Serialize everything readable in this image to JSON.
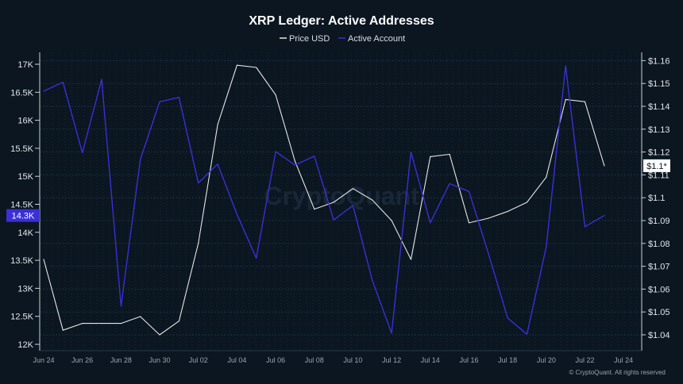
{
  "chart_data": {
    "type": "line",
    "title": "XRP Ledger: Active Addresses",
    "x": [
      "Jun 24",
      "Jun 25",
      "Jun 26",
      "Jun 27",
      "Jun 28",
      "Jun 29",
      "Jun 30",
      "Jul 01",
      "Jul 02",
      "Jul 03",
      "Jul 04",
      "Jul 05",
      "Jul 06",
      "Jul 07",
      "Jul 08",
      "Jul 09",
      "Jul 10",
      "Jul 11",
      "Jul 12",
      "Jul 13",
      "Jul 14",
      "Jul 15",
      "Jul 16",
      "Jul 17",
      "Jul 18",
      "Jul 19",
      "Jul 20",
      "Jul 21",
      "Jul 22",
      "Jul 23"
    ],
    "x_tick_labels": [
      "Jun 24",
      "Jun 26",
      "Jun 28",
      "Jun 30",
      "Jul 02",
      "Jul 04",
      "Jul 06",
      "Jul 08",
      "Jul 10",
      "Jul 12",
      "Jul 14",
      "Jul 16",
      "Jul 18",
      "Jul 20",
      "Jul 22",
      "Jul 24"
    ],
    "y_left": {
      "ticks": [
        "12K",
        "12.5K",
        "13K",
        "13.5K",
        "14K",
        "14.5K",
        "15K",
        "15.5K",
        "16K",
        "16.5K",
        "17K"
      ],
      "range": [
        12000,
        17000
      ]
    },
    "y_right": {
      "ticks": [
        "$1.04",
        "$1.05",
        "$1.06",
        "$1.07",
        "$1.08",
        "$1.09",
        "$1.1",
        "$1.11",
        "$1.12",
        "$1.13",
        "$1.14",
        "$1.15",
        "$1.16"
      ],
      "range": [
        1.04,
        1.16
      ]
    },
    "series": [
      {
        "name": "Price USD",
        "axis": "right",
        "color": "#e6e6e6",
        "values": [
          1.073,
          1.042,
          1.045,
          1.045,
          1.045,
          1.048,
          1.04,
          1.046,
          1.08,
          1.132,
          1.158,
          1.157,
          1.145,
          1.116,
          1.095,
          1.098,
          1.104,
          1.099,
          1.09,
          1.073,
          1.118,
          1.119,
          1.089,
          1.091,
          1.094,
          1.098,
          1.109,
          1.143,
          1.142,
          1.114
        ]
      },
      {
        "name": "Active Account",
        "axis": "left",
        "color": "#3b2fd6",
        "values": [
          16520,
          16680,
          15420,
          16730,
          12680,
          15300,
          16330,
          16410,
          14880,
          15220,
          14320,
          13540,
          15440,
          15200,
          15360,
          14220,
          14480,
          13140,
          12200,
          15430,
          14170,
          14870,
          14730,
          13630,
          12470,
          12180,
          13740,
          16970,
          14100,
          14300
        ]
      }
    ],
    "current_labels": {
      "left": "14.3K",
      "right": "$1.1*"
    },
    "legend_position": "top-center",
    "grid": true,
    "watermark": "CryptoQuant",
    "copyright": "© CryptoQuant. All rights reserved"
  }
}
